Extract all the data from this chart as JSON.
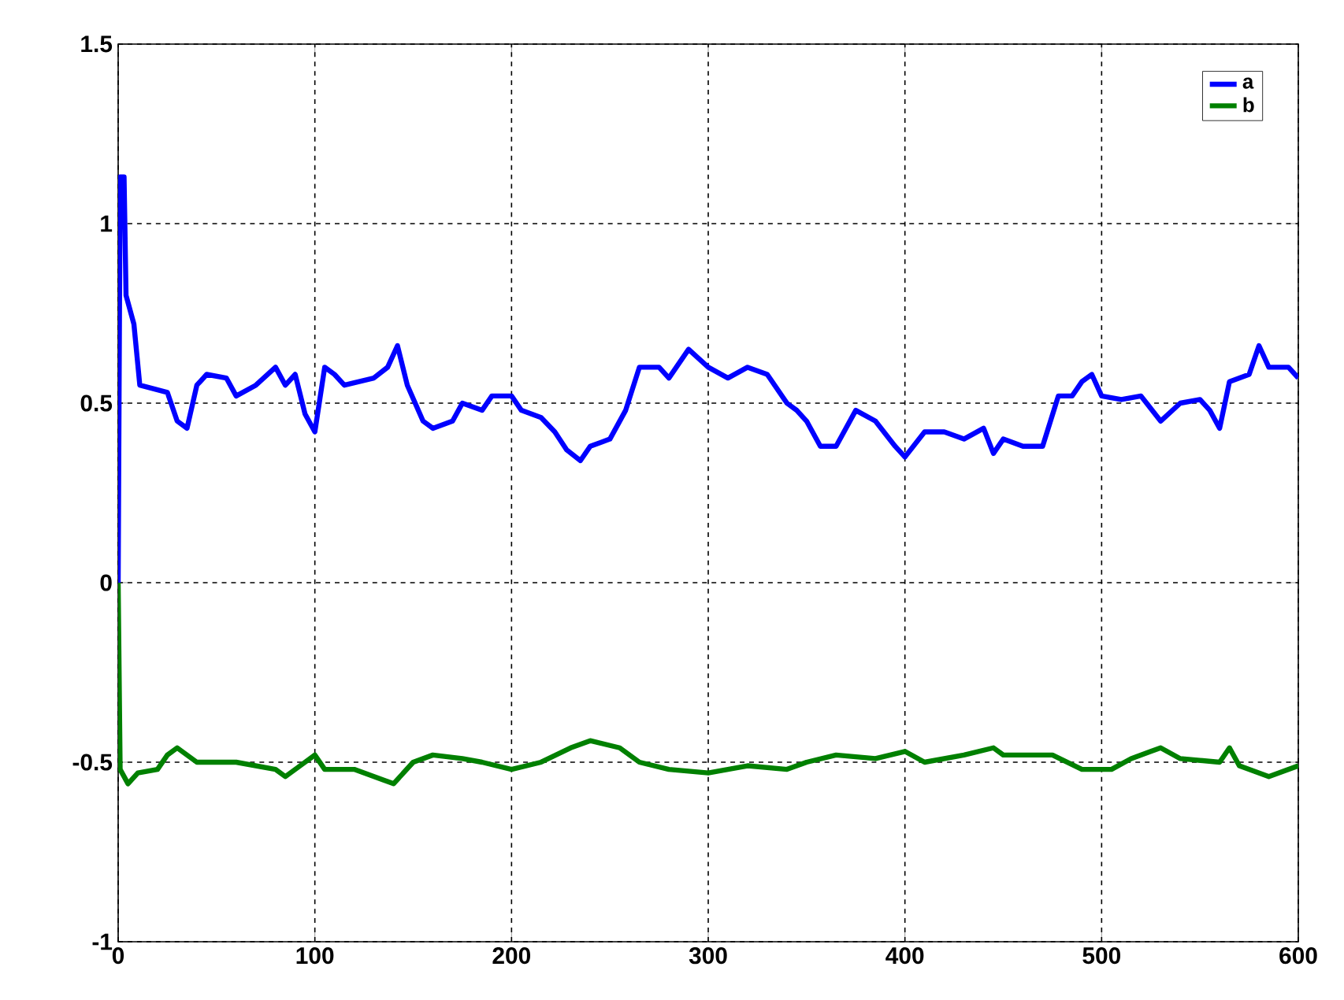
{
  "chart_data": {
    "type": "line",
    "xlim": [
      0,
      600
    ],
    "ylim": [
      -1,
      1.5
    ],
    "xticks": [
      0,
      100,
      200,
      300,
      400,
      500,
      600
    ],
    "yticks": [
      -1,
      -0.5,
      0,
      0.5,
      1,
      1.5
    ],
    "grid": true,
    "legend": "top right",
    "line_style": "solid",
    "marker": "none",
    "series": [
      {
        "name": "a",
        "color": "#0000ff",
        "x": [
          0,
          1,
          3,
          4,
          8,
          11,
          25,
          30,
          35,
          40,
          45,
          55,
          60,
          70,
          80,
          85,
          90,
          95,
          100,
          105,
          110,
          115,
          130,
          137,
          142,
          147,
          155,
          160,
          170,
          175,
          185,
          190,
          200,
          205,
          215,
          222,
          228,
          235,
          240,
          250,
          258,
          265,
          275,
          280,
          290,
          300,
          310,
          320,
          330,
          340,
          345,
          350,
          357,
          365,
          375,
          385,
          395,
          400,
          410,
          420,
          430,
          440,
          445,
          450,
          460,
          470,
          478,
          485,
          490,
          495,
          500,
          510,
          520,
          530,
          540,
          550,
          555,
          560,
          565,
          575,
          580,
          585,
          595,
          600
        ],
        "values": [
          0,
          1.13,
          1.13,
          0.8,
          0.72,
          0.55,
          0.53,
          0.45,
          0.43,
          0.55,
          0.58,
          0.57,
          0.52,
          0.55,
          0.6,
          0.55,
          0.58,
          0.47,
          0.42,
          0.6,
          0.58,
          0.55,
          0.57,
          0.6,
          0.66,
          0.55,
          0.45,
          0.43,
          0.45,
          0.5,
          0.48,
          0.52,
          0.52,
          0.48,
          0.46,
          0.42,
          0.37,
          0.34,
          0.38,
          0.4,
          0.48,
          0.6,
          0.6,
          0.57,
          0.65,
          0.6,
          0.57,
          0.6,
          0.58,
          0.5,
          0.48,
          0.45,
          0.38,
          0.38,
          0.48,
          0.45,
          0.38,
          0.35,
          0.42,
          0.42,
          0.4,
          0.43,
          0.36,
          0.4,
          0.38,
          0.38,
          0.52,
          0.52,
          0.56,
          0.58,
          0.52,
          0.51,
          0.52,
          0.45,
          0.5,
          0.51,
          0.48,
          0.43,
          0.56,
          0.58,
          0.66,
          0.6,
          0.6,
          0.57
        ]
      },
      {
        "name": "b",
        "color": "#008000",
        "x": [
          0,
          1,
          5,
          10,
          20,
          25,
          30,
          40,
          60,
          80,
          85,
          95,
          100,
          105,
          120,
          135,
          140,
          150,
          160,
          175,
          185,
          200,
          215,
          230,
          240,
          255,
          265,
          280,
          300,
          320,
          340,
          350,
          365,
          385,
          400,
          410,
          430,
          445,
          450,
          475,
          490,
          505,
          515,
          525,
          530,
          540,
          560,
          565,
          570,
          585,
          600
        ],
        "values": [
          0,
          -0.52,
          -0.56,
          -0.53,
          -0.52,
          -0.48,
          -0.46,
          -0.5,
          -0.5,
          -0.52,
          -0.54,
          -0.5,
          -0.48,
          -0.52,
          -0.52,
          -0.55,
          -0.56,
          -0.5,
          -0.48,
          -0.49,
          -0.5,
          -0.52,
          -0.5,
          -0.46,
          -0.44,
          -0.46,
          -0.5,
          -0.52,
          -0.53,
          -0.51,
          -0.52,
          -0.5,
          -0.48,
          -0.49,
          -0.47,
          -0.5,
          -0.48,
          -0.46,
          -0.48,
          -0.48,
          -0.52,
          -0.52,
          -0.49,
          -0.47,
          -0.46,
          -0.49,
          -0.5,
          -0.46,
          -0.51,
          -0.54,
          -0.51
        ]
      }
    ]
  }
}
